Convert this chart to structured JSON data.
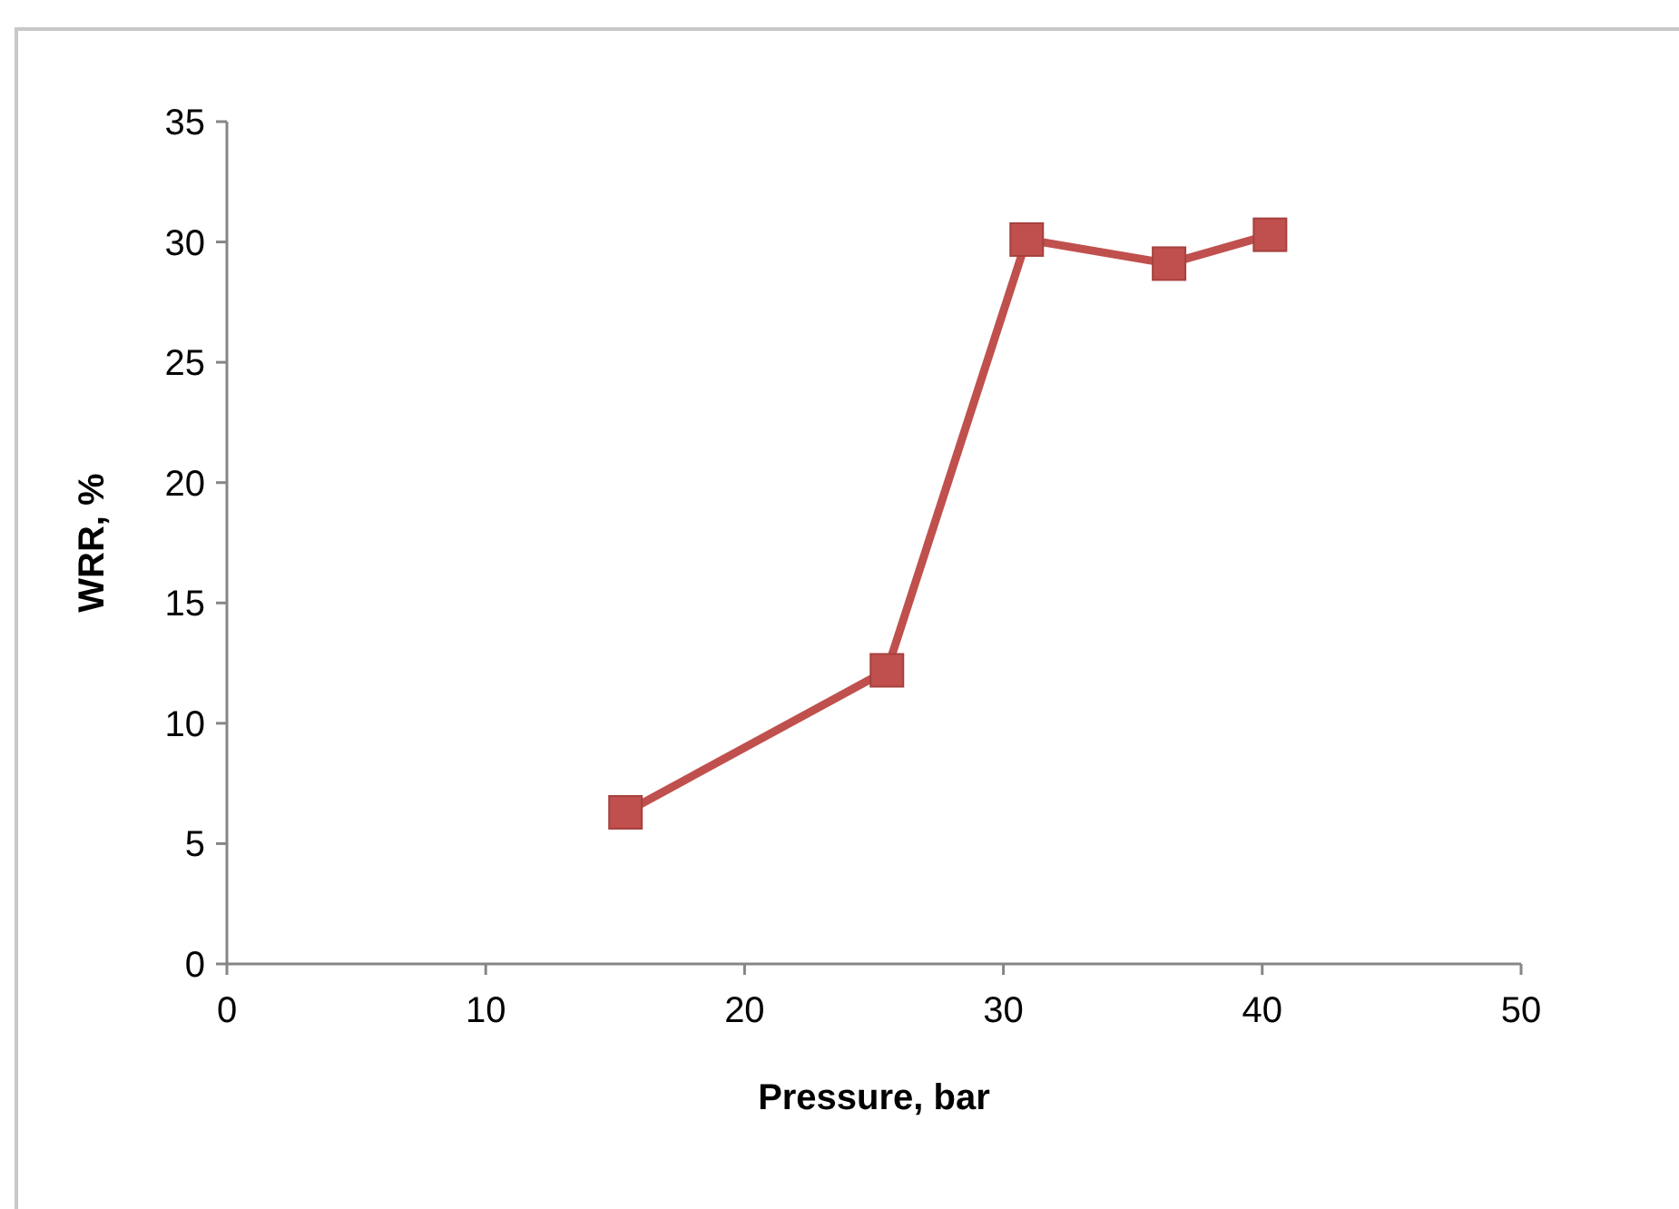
{
  "chart_data": {
    "type": "line",
    "xlabel": "Pressure, bar",
    "ylabel": "WRR, %",
    "x": [
      15.4,
      25.5,
      30.9,
      36.4,
      40.3
    ],
    "series": [
      {
        "color": "#c0504d",
        "values": [
          6.3,
          12.2,
          30.1,
          29.1,
          30.3
        ]
      }
    ],
    "xlim": [
      0,
      50
    ],
    "xticks": [
      0,
      10,
      20,
      30,
      40,
      50
    ],
    "ylim": [
      0,
      35
    ],
    "yticks": [
      0,
      5,
      10,
      15,
      20,
      25,
      30,
      35
    ],
    "marker": "square",
    "line_style": "solid"
  }
}
